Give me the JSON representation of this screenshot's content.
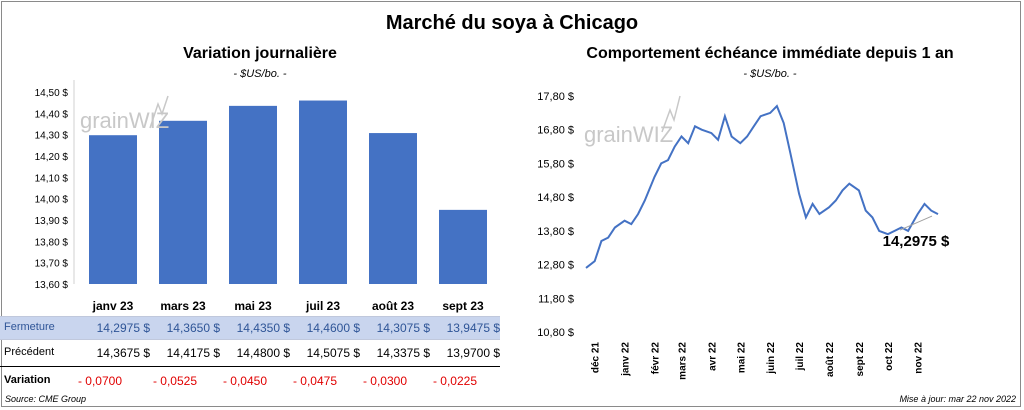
{
  "title": "Marché du soya à Chicago",
  "left_panel": {
    "subtitle": "Variation journalière",
    "unit": "- $US/bo. -",
    "table": {
      "row_labels": {
        "close": "Fermeture",
        "previous": "Précédent",
        "change": "Variation"
      },
      "close": [
        "14,2975  $",
        "14,3650  $",
        "14,4350  $",
        "14,4600  $",
        "14,3075  $",
        "13,9475  $"
      ],
      "previous": [
        "14,3675  $",
        "14,4175  $",
        "14,4800  $",
        "14,5075  $",
        "14,3375  $",
        "13,9700  $"
      ],
      "change": [
        "- 0,0700",
        "- 0,0525",
        "- 0,0450",
        "- 0,0475",
        "- 0,0300",
        "- 0,0225"
      ]
    }
  },
  "right_panel": {
    "subtitle": "Comportement  échéance immédiate depuis 1 an",
    "unit": "- $US/bo. -",
    "last_value_label": "14,2975 $"
  },
  "watermark": "grainWIZ",
  "footer": {
    "source": "Source: CME Group",
    "updated": "Mise à jour: mar 22 nov 2022"
  },
  "colors": {
    "bar": "#4472C4",
    "line": "#4472C4",
    "negative": "#E00000",
    "highlight_row": "#C9D5EE",
    "highlight_text": "#2F5597"
  },
  "chart_data": [
    {
      "type": "bar",
      "categories": [
        "janv 23",
        "mars 23",
        "mai 23",
        "juil 23",
        "août 23",
        "sept 23"
      ],
      "values": [
        14.2975,
        14.365,
        14.435,
        14.46,
        14.3075,
        13.9475
      ],
      "ylim": [
        13.6,
        14.5
      ],
      "yticks": [
        "13,60 $",
        "13,70 $",
        "13,80 $",
        "13,90 $",
        "14,00 $",
        "14,10 $",
        "14,20 $",
        "14,30 $",
        "14,40 $",
        "14,50 $"
      ],
      "grid": false
    },
    {
      "type": "line",
      "ylim": [
        10.8,
        17.8
      ],
      "yticks": [
        "10,80 $",
        "11,80 $",
        "12,80 $",
        "13,80 $",
        "14,80 $",
        "15,80 $",
        "16,80 $",
        "17,80 $"
      ],
      "xticks": [
        "déc 21",
        "janv 22",
        "févr 22",
        "mars 22",
        "avr 22",
        "mai 22",
        "juin 22",
        "juil 22",
        "août 22",
        "sept 22",
        "oct 22",
        "nov 22"
      ],
      "x": [
        "2021-11-22",
        "2021-12-01",
        "2021-12-08",
        "2021-12-15",
        "2021-12-22",
        "2022-01-01",
        "2022-01-08",
        "2022-01-15",
        "2022-01-22",
        "2022-02-01",
        "2022-02-08",
        "2022-02-15",
        "2022-02-22",
        "2022-03-01",
        "2022-03-08",
        "2022-03-15",
        "2022-03-22",
        "2022-04-01",
        "2022-04-08",
        "2022-04-15",
        "2022-04-22",
        "2022-05-01",
        "2022-05-08",
        "2022-05-15",
        "2022-05-22",
        "2022-06-01",
        "2022-06-08",
        "2022-06-15",
        "2022-06-22",
        "2022-07-01",
        "2022-07-08",
        "2022-07-15",
        "2022-07-22",
        "2022-08-01",
        "2022-08-08",
        "2022-08-15",
        "2022-08-22",
        "2022-09-01",
        "2022-09-08",
        "2022-09-15",
        "2022-09-22",
        "2022-10-01",
        "2022-10-08",
        "2022-10-15",
        "2022-10-22",
        "2022-11-01",
        "2022-11-08",
        "2022-11-15",
        "2022-11-22"
      ],
      "values": [
        12.7,
        12.9,
        13.5,
        13.6,
        13.9,
        14.1,
        14.0,
        14.3,
        14.7,
        15.4,
        15.8,
        15.9,
        16.3,
        16.6,
        16.4,
        16.9,
        16.8,
        16.7,
        16.5,
        17.2,
        16.6,
        16.4,
        16.6,
        16.9,
        17.2,
        17.3,
        17.5,
        17.0,
        16.1,
        14.9,
        14.2,
        14.6,
        14.3,
        14.5,
        14.7,
        15.0,
        15.2,
        15.0,
        14.4,
        14.2,
        13.8,
        13.7,
        13.8,
        13.9,
        13.8,
        14.3,
        14.6,
        14.4,
        14.2975
      ],
      "grid": false
    }
  ]
}
